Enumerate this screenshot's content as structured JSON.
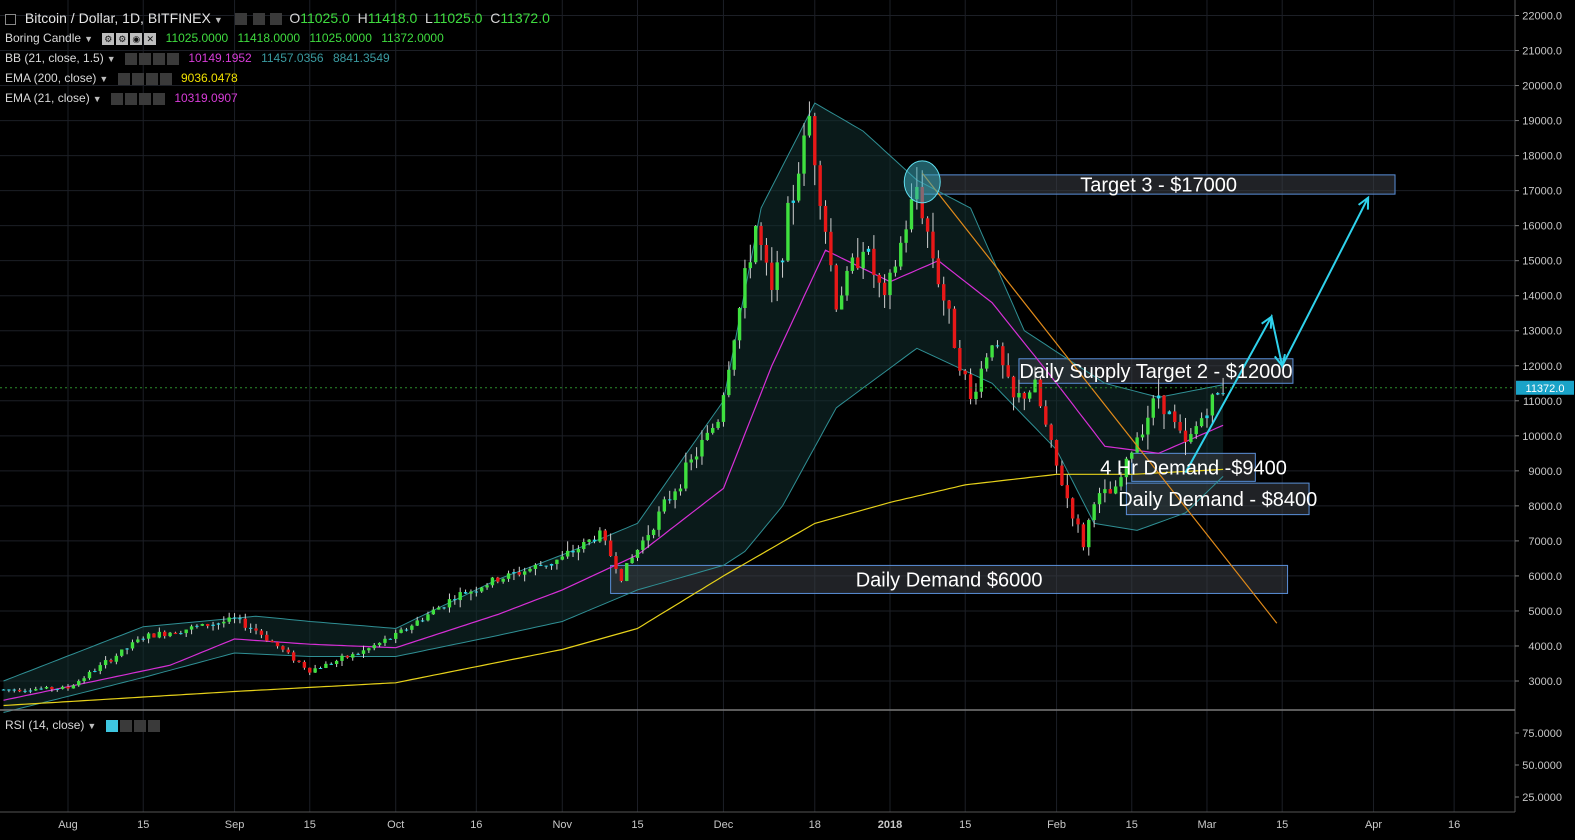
{
  "header": {
    "title": "Bitcoin / Dollar, 1D, BITFINEX",
    "ohlc": {
      "O": "11025.0",
      "H": "11418.0",
      "L": "11025.0",
      "C": "11372.0"
    }
  },
  "indicators": [
    {
      "name": "Boring Candle",
      "values": [
        "11025.0000",
        "11418.0000",
        "11025.0000",
        "11372.0000"
      ],
      "colors": [
        "#3fdc3f",
        "#3fdc3f",
        "#3fdc3f",
        "#3fdc3f"
      ]
    },
    {
      "name": "BB (21, close, 1.5)",
      "values": [
        "10149.1952",
        "11457.0356",
        "8841.3549"
      ],
      "colors": [
        "#d83cd8",
        "#3a9aa0",
        "#3a9aa0"
      ]
    },
    {
      "name": "EMA (200, close)",
      "values": [
        "9036.0478"
      ],
      "colors": [
        "#f0e000"
      ]
    },
    {
      "name": "EMA (21, close)",
      "values": [
        "10319.0907"
      ],
      "colors": [
        "#d83cd8"
      ]
    }
  ],
  "rsi": {
    "name": "RSI (14, close)"
  },
  "colors": {
    "up": "#3fe03f",
    "down": "#e81818",
    "wick": "#d0d0d0",
    "bb": "#2f8f94",
    "ema21": "#d62fd6",
    "ema200": "#e6d11a",
    "trendline": "#e08a1a",
    "arrow": "#2fd2ec",
    "price": "#1aa3c8",
    "zone_fill": "#3a3e45",
    "zone_edge": "#5a8fd8"
  },
  "chart_data": {
    "type": "candlestick",
    "y_price_range": [
      2300,
      22200
    ],
    "x_date_range": [
      "2017-07-20",
      "2018-04-30"
    ],
    "y_ticks": [
      "3000.0",
      "4000.0",
      "5000.0",
      "6000.0",
      "7000.0",
      "8000.0",
      "9000.0",
      "10000.0",
      "11000.0",
      "12000.0",
      "13000.0",
      "14000.0",
      "15000.0",
      "16000.0",
      "17000.0",
      "18000.0",
      "19000.0",
      "20000.0",
      "21000.0",
      "22000.0"
    ],
    "y_tick_values": [
      3000,
      4000,
      5000,
      6000,
      7000,
      8000,
      9000,
      10000,
      11000,
      12000,
      13000,
      14000,
      15000,
      16000,
      17000,
      18000,
      19000,
      20000,
      21000,
      22000
    ],
    "x_ticks": [
      "Aug",
      "15",
      "Sep",
      "15",
      "Oct",
      "16",
      "Nov",
      "15",
      "Dec",
      "18",
      "2018",
      "15",
      "Feb",
      "15",
      "Mar",
      "15",
      "Apr",
      "16"
    ],
    "x_tick_dates": [
      "2017-08-01",
      "2017-08-15",
      "2017-09-01",
      "2017-09-15",
      "2017-10-01",
      "2017-10-16",
      "2017-11-01",
      "2017-11-15",
      "2017-12-01",
      "2017-12-18",
      "2018-01-01",
      "2018-01-15",
      "2018-02-01",
      "2018-02-15",
      "2018-03-01",
      "2018-03-15",
      "2018-04-01",
      "2018-04-16"
    ],
    "last_price": "11372.0",
    "last_price_value": 11372,
    "rsi_ticks": [
      "75.0000",
      "50.0000",
      "25.0000"
    ],
    "rsi_tick_values": [
      75,
      50,
      25
    ],
    "price_anchors": [
      [
        "2017-07-20",
        2750
      ],
      [
        "2017-08-01",
        2800
      ],
      [
        "2017-08-15",
        4250
      ],
      [
        "2017-09-01",
        4750
      ],
      [
        "2017-09-05",
        4450
      ],
      [
        "2017-09-15",
        3300
      ],
      [
        "2017-09-25",
        3850
      ],
      [
        "2017-10-01",
        4300
      ],
      [
        "2017-10-12",
        5400
      ],
      [
        "2017-10-20",
        5900
      ],
      [
        "2017-11-01",
        6500
      ],
      [
        "2017-11-08",
        7200
      ],
      [
        "2017-11-12",
        6000
      ],
      [
        "2017-11-20",
        8000
      ],
      [
        "2017-11-26",
        9500
      ],
      [
        "2017-11-30",
        10500
      ],
      [
        "2017-12-07",
        16000
      ],
      [
        "2017-12-10",
        14000
      ],
      [
        "2017-12-17",
        19100
      ],
      [
        "2017-12-22",
        13800
      ],
      [
        "2017-12-27",
        15500
      ],
      [
        "2017-12-31",
        13800
      ],
      [
        "2018-01-06",
        17100
      ],
      [
        "2018-01-10",
        14500
      ],
      [
        "2018-01-16",
        11000
      ],
      [
        "2018-01-20",
        12800
      ],
      [
        "2018-01-24",
        11000
      ],
      [
        "2018-01-28",
        11400
      ],
      [
        "2018-02-01",
        9100
      ],
      [
        "2018-02-06",
        6900
      ],
      [
        "2018-02-08",
        8200
      ],
      [
        "2018-02-12",
        8400
      ],
      [
        "2018-02-16",
        10000
      ],
      [
        "2018-02-20",
        11200
      ],
      [
        "2018-02-25",
        9700
      ],
      [
        "2018-03-01",
        10800
      ],
      [
        "2018-03-04",
        11372
      ]
    ],
    "ema21_anchors": [
      [
        "2017-07-20",
        2450
      ],
      [
        "2017-08-20",
        3450
      ],
      [
        "2017-09-01",
        4200
      ],
      [
        "2017-09-15",
        4050
      ],
      [
        "2017-10-01",
        3950
      ],
      [
        "2017-10-20",
        4900
      ],
      [
        "2017-11-01",
        5600
      ],
      [
        "2017-11-15",
        6600
      ],
      [
        "2017-12-01",
        8500
      ],
      [
        "2017-12-10",
        12000
      ],
      [
        "2017-12-20",
        15300
      ],
      [
        "2018-01-01",
        14400
      ],
      [
        "2018-01-10",
        15000
      ],
      [
        "2018-01-20",
        13800
      ],
      [
        "2018-02-01",
        11500
      ],
      [
        "2018-02-10",
        9700
      ],
      [
        "2018-02-20",
        9500
      ],
      [
        "2018-03-04",
        10300
      ]
    ],
    "ema200_anchors": [
      [
        "2017-07-20",
        2300
      ],
      [
        "2017-09-01",
        2700
      ],
      [
        "2017-10-01",
        2950
      ],
      [
        "2017-11-01",
        3900
      ],
      [
        "2017-11-15",
        4500
      ],
      [
        "2017-12-01",
        6000
      ],
      [
        "2017-12-18",
        7500
      ],
      [
        "2018-01-01",
        8100
      ],
      [
        "2018-01-15",
        8600
      ],
      [
        "2018-02-01",
        8900
      ],
      [
        "2018-02-15",
        8900
      ],
      [
        "2018-03-04",
        9040
      ]
    ],
    "bb_upper_anchors": [
      [
        "2017-07-20",
        3000
      ],
      [
        "2017-08-15",
        4550
      ],
      [
        "2017-09-05",
        4850
      ],
      [
        "2017-09-15",
        4700
      ],
      [
        "2017-10-01",
        4500
      ],
      [
        "2017-10-20",
        5900
      ],
      [
        "2017-11-01",
        6600
      ],
      [
        "2017-11-15",
        7500
      ],
      [
        "2017-12-01",
        11000
      ],
      [
        "2017-12-08",
        16500
      ],
      [
        "2017-12-18",
        19500
      ],
      [
        "2017-12-27",
        18700
      ],
      [
        "2018-01-06",
        17300
      ],
      [
        "2018-01-16",
        16500
      ],
      [
        "2018-01-26",
        13000
      ],
      [
        "2018-02-10",
        11500
      ],
      [
        "2018-02-20",
        11100
      ],
      [
        "2018-03-04",
        11457
      ]
    ],
    "bb_lower_anchors": [
      [
        "2017-07-20",
        2100
      ],
      [
        "2017-08-15",
        3100
      ],
      [
        "2017-09-01",
        3800
      ],
      [
        "2017-09-15",
        3700
      ],
      [
        "2017-10-01",
        3700
      ],
      [
        "2017-10-20",
        4300
      ],
      [
        "2017-11-01",
        4700
      ],
      [
        "2017-11-15",
        5600
      ],
      [
        "2017-12-01",
        6300
      ],
      [
        "2017-12-05",
        6700
      ],
      [
        "2017-12-12",
        8000
      ],
      [
        "2017-12-22",
        10800
      ],
      [
        "2018-01-06",
        12500
      ],
      [
        "2018-01-20",
        11500
      ],
      [
        "2018-02-01",
        9600
      ],
      [
        "2018-02-08",
        7500
      ],
      [
        "2018-02-16",
        7300
      ],
      [
        "2018-02-25",
        7800
      ],
      [
        "2018-03-04",
        8841
      ]
    ],
    "zones": [
      {
        "label": "Target 3 - $17000",
        "x0": "2018-01-07",
        "x1": "2018-04-05",
        "y0": 16900,
        "y1": 17450
      },
      {
        "label": "Daily Supply Target 2 - $12000",
        "x0": "2018-01-25",
        "x1": "2018-03-17",
        "y0": 11500,
        "y1": 12200
      },
      {
        "label": "4 Hr Demand -$9400",
        "x0": "2018-02-15",
        "x1": "2018-03-10",
        "y0": 8700,
        "y1": 9500
      },
      {
        "label": "Daily Demand - $8400",
        "x0": "2018-02-14",
        "x1": "2018-03-20",
        "y0": 7750,
        "y1": 8650
      },
      {
        "label": "Daily Demand $6000",
        "x0": "2017-11-10",
        "x1": "2018-03-16",
        "y0": 5500,
        "y1": 6300
      }
    ],
    "trendline": {
      "from": [
        "2018-01-07",
        17500
      ],
      "to": [
        "2018-03-14",
        4650
      ]
    },
    "projection": [
      [
        "2018-02-25",
        8950
      ],
      [
        "2018-03-13",
        13400
      ],
      [
        "2018-03-15",
        12000
      ],
      [
        "2018-03-31",
        16800
      ]
    ],
    "circle_marker": {
      "date": "2018-01-07",
      "value": 17250
    }
  }
}
